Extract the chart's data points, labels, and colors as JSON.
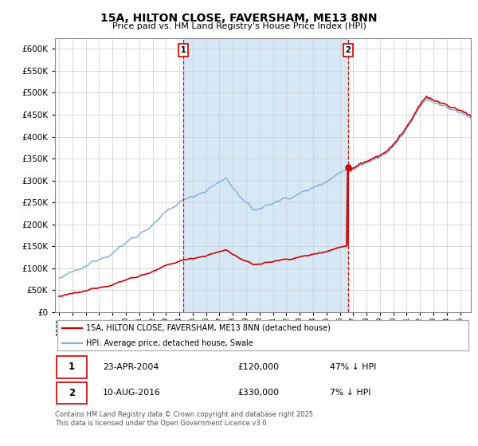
{
  "title": "15A, HILTON CLOSE, FAVERSHAM, ME13 8NN",
  "subtitle": "Price paid vs. HM Land Registry's House Price Index (HPI)",
  "sale1_date": "23-APR-2004",
  "sale1_price": 120000,
  "sale1_label": "47% ↓ HPI",
  "sale2_date": "10-AUG-2016",
  "sale2_price": 330000,
  "sale2_label": "7% ↓ HPI",
  "legend_property": "15A, HILTON CLOSE, FAVERSHAM, ME13 8NN (detached house)",
  "legend_hpi": "HPI: Average price, detached house, Swale",
  "footer": "Contains HM Land Registry data © Crown copyright and database right 2025.\nThis data is licensed under the Open Government Licence v3.0.",
  "property_color": "#cc0000",
  "hpi_color": "#7eadd4",
  "vline_color": "#cc0000",
  "fill_color": "#d6e8f5",
  "ylim": [
    0,
    625000
  ],
  "yticks": [
    0,
    50000,
    100000,
    150000,
    200000,
    250000,
    300000,
    350000,
    400000,
    450000,
    500000,
    550000,
    600000
  ],
  "sale1_x": 2004.31,
  "sale2_x": 2016.61,
  "xstart": 1995,
  "xend": 2025
}
